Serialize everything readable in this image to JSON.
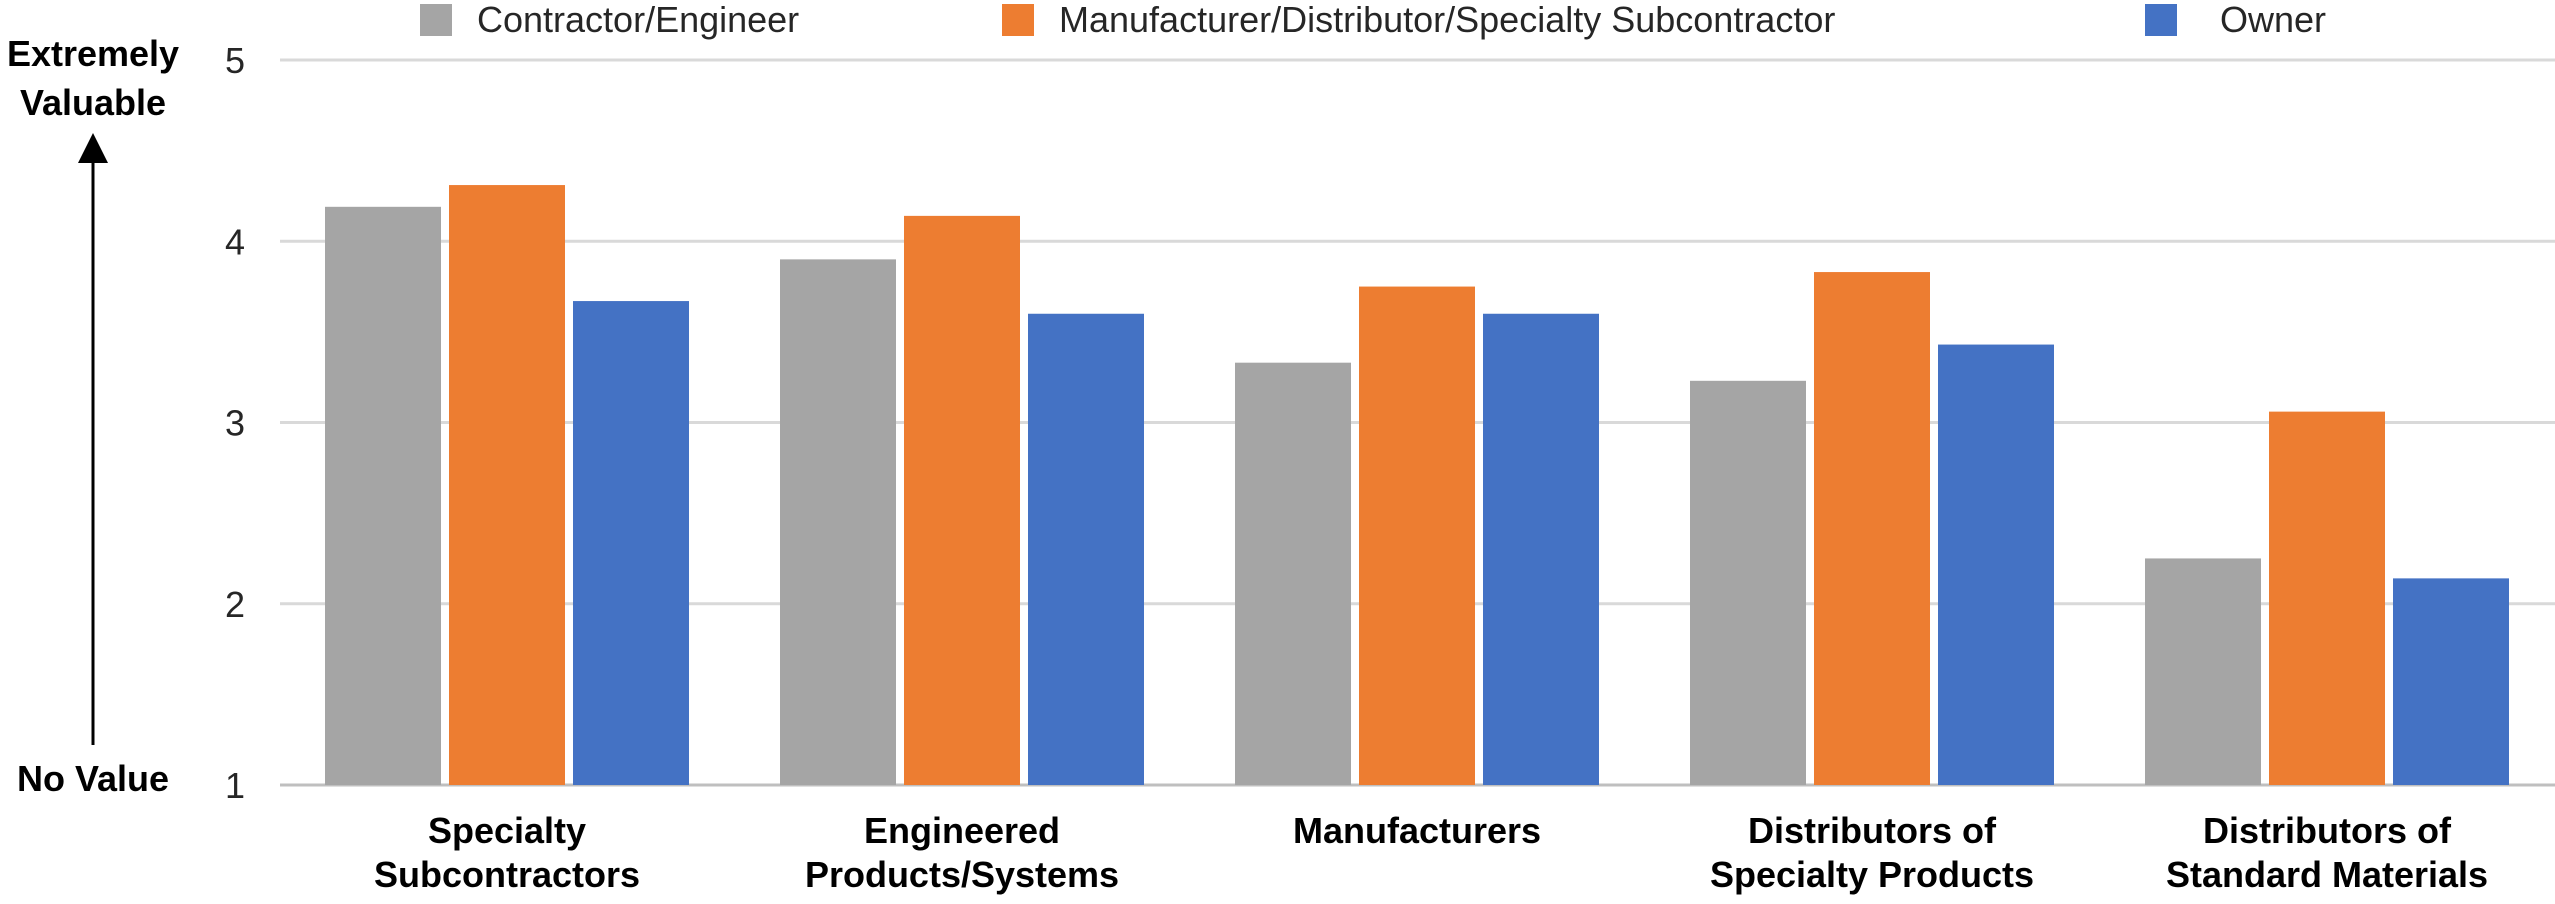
{
  "chart_data": {
    "type": "bar",
    "title": "",
    "xlabel": "",
    "ylabel_top": [
      "Extremely",
      "Valuable"
    ],
    "ylabel_bottom": "No Value",
    "ylim": [
      1,
      5
    ],
    "yticks": [
      1,
      2,
      3,
      4,
      5
    ],
    "grid": true,
    "legend_position": "top",
    "categories": [
      [
        "Specialty",
        "Subcontractors"
      ],
      [
        "Engineered",
        "Products/Systems"
      ],
      [
        "Manufacturers"
      ],
      [
        "Distributors of",
        "Specialty Products"
      ],
      [
        "Distributors of",
        "Standard Materials"
      ]
    ],
    "series": [
      {
        "name": "Contractor/Engineer",
        "color": "#a5a5a5",
        "values": [
          4.19,
          3.9,
          3.33,
          3.23,
          2.25
        ]
      },
      {
        "name": "Manufacturer/Distributor/Specialty Subcontractor",
        "color": "#ed7d31",
        "values": [
          4.31,
          4.14,
          3.75,
          3.83,
          3.06
        ]
      },
      {
        "name": "Owner",
        "color": "#4472c4",
        "values": [
          3.67,
          3.6,
          3.6,
          3.43,
          2.14
        ]
      }
    ]
  }
}
